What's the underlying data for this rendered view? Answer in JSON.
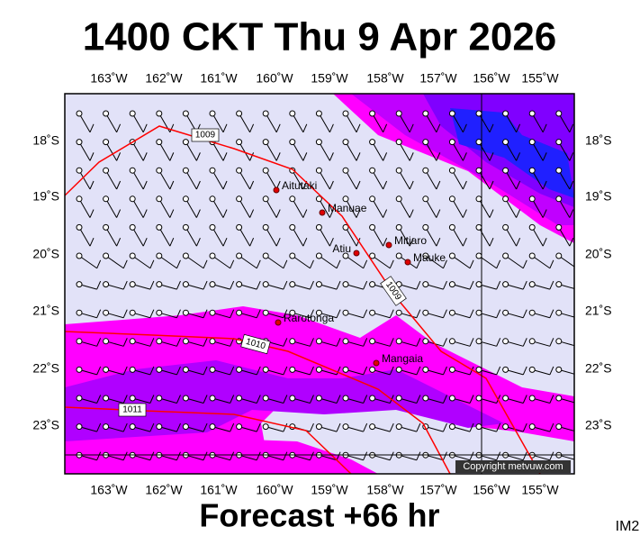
{
  "header": {
    "title": "1400 CKT Thu 9 Apr 2026"
  },
  "axes": {
    "lon_labels": [
      "163˚W",
      "162˚W",
      "161˚W",
      "160˚W",
      "159˚W",
      "158˚W",
      "157˚W",
      "156˚W",
      "155˚W"
    ],
    "lat_labels": [
      "18˚S",
      "19˚S",
      "20˚S",
      "21˚S",
      "22˚S",
      "23˚S"
    ]
  },
  "places": [
    {
      "label": "Aitutaki"
    },
    {
      "label": "Manuae"
    },
    {
      "label": "Mitiaro"
    },
    {
      "label": "Atiu"
    },
    {
      "label": "Mauke"
    },
    {
      "label": "Rarotonga"
    },
    {
      "label": "Mangaia"
    }
  ],
  "isobars": [
    {
      "label": "1009"
    },
    {
      "label": "1009"
    },
    {
      "label": "1010"
    },
    {
      "label": "1011"
    }
  ],
  "copyright": "Copyright metvuw.com",
  "footer": {
    "forecast": "Forecast +66 hr",
    "code": "IM2"
  }
}
